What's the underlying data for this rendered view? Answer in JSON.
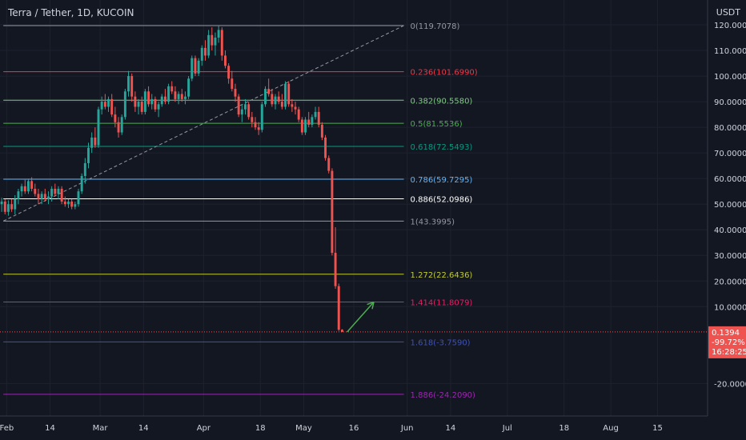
{
  "header": {
    "title": "Terra / Tether, 1D, KUCOIN",
    "currency": "USDT"
  },
  "price_tag": {
    "price": "0.1394",
    "change": "-99.72%",
    "countdown": "16:28:25"
  },
  "colors": {
    "background": "#131722",
    "up": "#26a69a",
    "down": "#ef5350",
    "axis_text": "#d1d4dc",
    "arrow": "#4caf50",
    "trend_line": "#9598a1"
  },
  "chart_data": {
    "type": "candlestick",
    "title": "Terra / Tether, 1D, KUCOIN",
    "ylim": [
      -28,
      125
    ],
    "y_ticks": [
      -20,
      10,
      20,
      30,
      40,
      50,
      60,
      70,
      80,
      90,
      100,
      110,
      120
    ],
    "y_tick_labels": [
      "-20.0000",
      "10.0000",
      "20.0000",
      "30.0000",
      "40.0000",
      "50.0000",
      "60.0000",
      "70.0000",
      "80.0000",
      "90.0000",
      "100.0000",
      "110.0000",
      "120.0000"
    ],
    "x_start": "2022-01-30",
    "x_end": "2022-08-30",
    "x_ticks": [
      {
        "label": "Feb",
        "date": "2022-02-01"
      },
      {
        "label": "14",
        "date": "2022-02-14"
      },
      {
        "label": "Mar",
        "date": "2022-03-01"
      },
      {
        "label": "14",
        "date": "2022-03-14"
      },
      {
        "label": "Apr",
        "date": "2022-04-01"
      },
      {
        "label": "18",
        "date": "2022-04-18"
      },
      {
        "label": "May",
        "date": "2022-05-01"
      },
      {
        "label": "16",
        "date": "2022-05-16"
      },
      {
        "label": "Jun",
        "date": "2022-06-01"
      },
      {
        "label": "14",
        "date": "2022-06-14"
      },
      {
        "label": "Jul",
        "date": "2022-07-01"
      },
      {
        "label": "18",
        "date": "2022-07-18"
      },
      {
        "label": "Aug",
        "date": "2022-08-01"
      },
      {
        "label": "15",
        "date": "2022-08-15"
      }
    ],
    "fib_levels": [
      {
        "ratio": "0",
        "value": 119.7078,
        "label": "0(119.7078)",
        "color": "#9598a1"
      },
      {
        "ratio": "0.236",
        "value": 101.699,
        "label": "0.236(101.6990)",
        "color": "#f23645"
      },
      {
        "ratio": "0.382",
        "value": 90.558,
        "label": "0.382(90.5580)",
        "color": "#81c784"
      },
      {
        "ratio": "0.5",
        "value": 81.5536,
        "label": "0.5(81.5536)",
        "color": "#4caf50"
      },
      {
        "ratio": "0.618",
        "value": 72.5493,
        "label": "0.618(72.5493)",
        "color": "#089981"
      },
      {
        "ratio": "0.786",
        "value": 59.7295,
        "label": "0.786(59.7295)",
        "color": "#64b5f6"
      },
      {
        "ratio": "0.886",
        "value": 52.0986,
        "label": "0.886(52.0986)",
        "color": "#ffffff"
      },
      {
        "ratio": "1",
        "value": 43.3995,
        "label": "1(43.3995)",
        "color": "#9598a1"
      },
      {
        "ratio": "1.272",
        "value": 22.6436,
        "label": "1.272(22.6436)",
        "color": "#c0ca33"
      },
      {
        "ratio": "1.414",
        "value": 11.8079,
        "label": "1.414(11.8079)",
        "color": "#e91e63"
      },
      {
        "ratio": "1.618",
        "value": -3.759,
        "label": "1.618(-3.7590)",
        "color": "#3f51b5"
      },
      {
        "ratio": "1.886",
        "value": -24.209,
        "label": "1.886(-24.2090)",
        "color": "#9c27b0"
      }
    ],
    "trend_line": {
      "from": [
        "2022-01-31",
        43.4
      ],
      "to": [
        "2022-05-31",
        119.7
      ]
    },
    "arrow": {
      "from": [
        "2022-05-14",
        0.1
      ],
      "to": [
        "2022-05-22",
        11.8
      ]
    },
    "last_price": 0.1394,
    "candles": [
      [
        "2022-01-30",
        50,
        52.5,
        47,
        51
      ],
      [
        "2022-01-31",
        51,
        52,
        46,
        47
      ],
      [
        "2022-02-01",
        47,
        51.5,
        45.5,
        50
      ],
      [
        "2022-02-02",
        50,
        52,
        47,
        48
      ],
      [
        "2022-02-03",
        48,
        53.5,
        46,
        52
      ],
      [
        "2022-02-04",
        52,
        56,
        50,
        55
      ],
      [
        "2022-02-05",
        55,
        58,
        53,
        57
      ],
      [
        "2022-02-06",
        57,
        59.5,
        54,
        55
      ],
      [
        "2022-02-07",
        55,
        60,
        54,
        59
      ],
      [
        "2022-02-08",
        59,
        60.5,
        55,
        56
      ],
      [
        "2022-02-09",
        56,
        58,
        53,
        54
      ],
      [
        "2022-02-10",
        54,
        56,
        50,
        52
      ],
      [
        "2022-02-11",
        52,
        55,
        50,
        54
      ],
      [
        "2022-02-12",
        54,
        56,
        51,
        52
      ],
      [
        "2022-02-13",
        52,
        55,
        50,
        53
      ],
      [
        "2022-02-14",
        53,
        57,
        51,
        56
      ],
      [
        "2022-02-15",
        56,
        58,
        53,
        54
      ],
      [
        "2022-02-16",
        54,
        57,
        52,
        56
      ],
      [
        "2022-02-17",
        56,
        57,
        50,
        51
      ],
      [
        "2022-02-18",
        51,
        53,
        49,
        50
      ],
      [
        "2022-02-19",
        50,
        52,
        48.5,
        51
      ],
      [
        "2022-02-20",
        51,
        52,
        48,
        49
      ],
      [
        "2022-02-21",
        49,
        51,
        48,
        50
      ],
      [
        "2022-02-22",
        50,
        56,
        49,
        55
      ],
      [
        "2022-02-23",
        55,
        62,
        54,
        61
      ],
      [
        "2022-02-24",
        61,
        68,
        58,
        66
      ],
      [
        "2022-02-25",
        66,
        74,
        64,
        72
      ],
      [
        "2022-02-26",
        72,
        78,
        70,
        76
      ],
      [
        "2022-02-27",
        76,
        80,
        72,
        73
      ],
      [
        "2022-02-28",
        73,
        88,
        72,
        87
      ],
      [
        "2022-03-01",
        87,
        92,
        85,
        90
      ],
      [
        "2022-03-02",
        90,
        93,
        87,
        88
      ],
      [
        "2022-03-03",
        88,
        92,
        86,
        91
      ],
      [
        "2022-03-04",
        91,
        93,
        84,
        85
      ],
      [
        "2022-03-05",
        85,
        88,
        80,
        82
      ],
      [
        "2022-03-06",
        82,
        84,
        76,
        78
      ],
      [
        "2022-03-07",
        78,
        85,
        77,
        84
      ],
      [
        "2022-03-08",
        84,
        95,
        83,
        94
      ],
      [
        "2022-03-09",
        94,
        102,
        92,
        100
      ],
      [
        "2022-03-10",
        100,
        101,
        90,
        92
      ],
      [
        "2022-03-11",
        92,
        94,
        86,
        88
      ],
      [
        "2022-03-12",
        88,
        91,
        85,
        90
      ],
      [
        "2022-03-13",
        90,
        92,
        85,
        86
      ],
      [
        "2022-03-14",
        86,
        95,
        85,
        94
      ],
      [
        "2022-03-15",
        94,
        96,
        88,
        89
      ],
      [
        "2022-03-16",
        89,
        93,
        87,
        91
      ],
      [
        "2022-03-17",
        91,
        92,
        86,
        87
      ],
      [
        "2022-03-18",
        87,
        90,
        84,
        89
      ],
      [
        "2022-03-19",
        89,
        93,
        88,
        92
      ],
      [
        "2022-03-20",
        92,
        95,
        89,
        90
      ],
      [
        "2022-03-21",
        90,
        97,
        89,
        96
      ],
      [
        "2022-03-22",
        96,
        98,
        93,
        94
      ],
      [
        "2022-03-23",
        94,
        96,
        90,
        91
      ],
      [
        "2022-03-24",
        91,
        94,
        89,
        93
      ],
      [
        "2022-03-25",
        93,
        95,
        90,
        91
      ],
      [
        "2022-03-26",
        91,
        94,
        89,
        92
      ],
      [
        "2022-03-27",
        92,
        100,
        91,
        99
      ],
      [
        "2022-03-28",
        99,
        108,
        98,
        107
      ],
      [
        "2022-03-29",
        107,
        108,
        100,
        101
      ],
      [
        "2022-03-30",
        101,
        107,
        100,
        106
      ],
      [
        "2022-03-31",
        106,
        112,
        104,
        111
      ],
      [
        "2022-04-01",
        111,
        114,
        106,
        108
      ],
      [
        "2022-04-02",
        108,
        118,
        107,
        116
      ],
      [
        "2022-04-03",
        116,
        119,
        110,
        112
      ],
      [
        "2022-04-04",
        112,
        117,
        108,
        115
      ],
      [
        "2022-04-05",
        115,
        119.5,
        113,
        118
      ],
      [
        "2022-04-06",
        118,
        119,
        106,
        108
      ],
      [
        "2022-04-07",
        108,
        110,
        103,
        104
      ],
      [
        "2022-04-08",
        104,
        105,
        97,
        99
      ],
      [
        "2022-04-09",
        99,
        102,
        94,
        95
      ],
      [
        "2022-04-10",
        95,
        97,
        90,
        92
      ],
      [
        "2022-04-11",
        92,
        93,
        84,
        85
      ],
      [
        "2022-04-12",
        85,
        89,
        82,
        87
      ],
      [
        "2022-04-13",
        87,
        91,
        85,
        89
      ],
      [
        "2022-04-14",
        89,
        90,
        83,
        84
      ],
      [
        "2022-04-15",
        84,
        86,
        80,
        82
      ],
      [
        "2022-04-16",
        82,
        84,
        79,
        80
      ],
      [
        "2022-04-17",
        80,
        82,
        77,
        79
      ],
      [
        "2022-04-18",
        79,
        90,
        78,
        89
      ],
      [
        "2022-04-19",
        89,
        96,
        88,
        95
      ],
      [
        "2022-04-20",
        95,
        99,
        92,
        93
      ],
      [
        "2022-04-21",
        93,
        95,
        88,
        89
      ],
      [
        "2022-04-22",
        89,
        93,
        87,
        92
      ],
      [
        "2022-04-23",
        92,
        94,
        89,
        90
      ],
      [
        "2022-04-24",
        90,
        93,
        87,
        88
      ],
      [
        "2022-04-25",
        88,
        98,
        87,
        97
      ],
      [
        "2022-04-26",
        97,
        98,
        88,
        89
      ],
      [
        "2022-04-27",
        89,
        91,
        86,
        88
      ],
      [
        "2022-04-28",
        88,
        90,
        85,
        87
      ],
      [
        "2022-04-29",
        87,
        88,
        82,
        83
      ],
      [
        "2022-04-30",
        83,
        84,
        77,
        78
      ],
      [
        "2022-05-01",
        78,
        84,
        77,
        83
      ],
      [
        "2022-05-02",
        83,
        86,
        80,
        81
      ],
      [
        "2022-05-03",
        81,
        85,
        80,
        84
      ],
      [
        "2022-05-04",
        84,
        88,
        83,
        86
      ],
      [
        "2022-05-05",
        86,
        88,
        80,
        81
      ],
      [
        "2022-05-06",
        81,
        82,
        75,
        76
      ],
      [
        "2022-05-07",
        76,
        77,
        67,
        68
      ],
      [
        "2022-05-08",
        68,
        69,
        62,
        63
      ],
      [
        "2022-05-09",
        63,
        64,
        30,
        31
      ],
      [
        "2022-05-10",
        31,
        41,
        17,
        18
      ],
      [
        "2022-05-11",
        18,
        19,
        0.5,
        1
      ],
      [
        "2022-05-12",
        1,
        1.2,
        0.05,
        0.1394
      ]
    ]
  }
}
